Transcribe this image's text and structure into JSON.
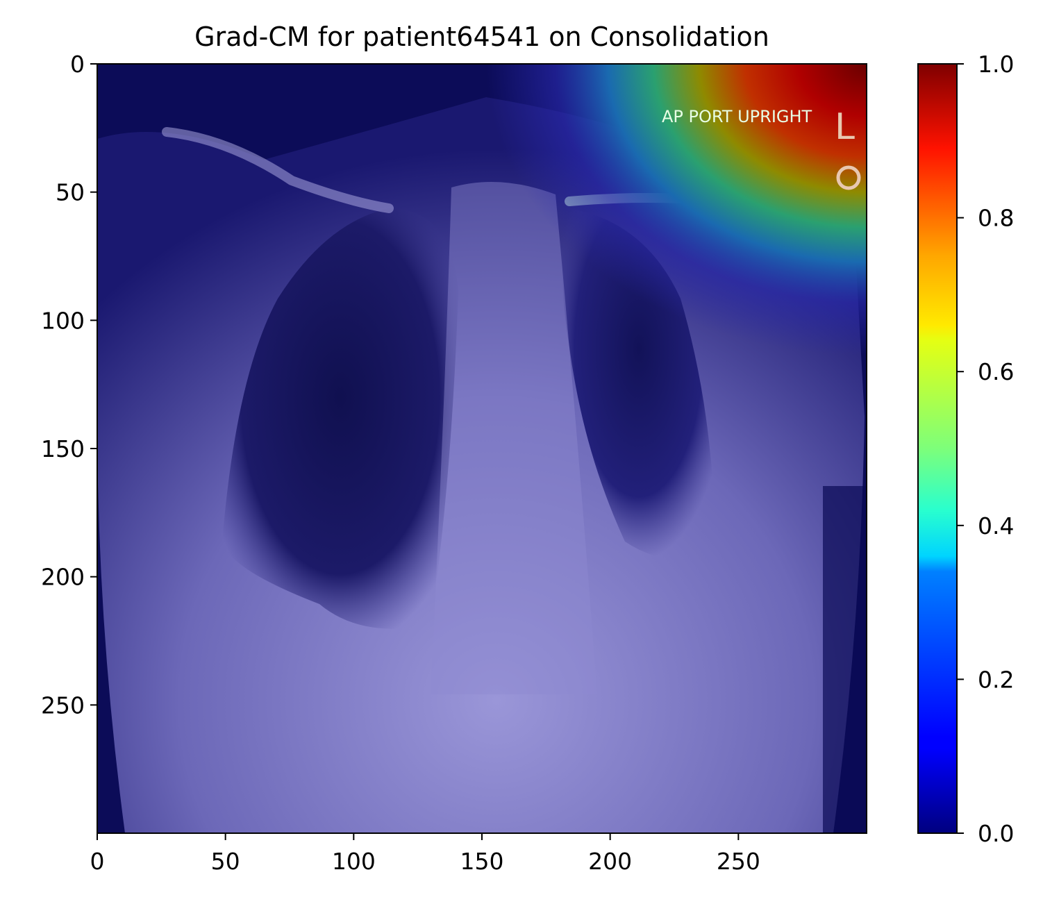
{
  "chart_data": {
    "type": "heatmap",
    "title": "Grad-CM for patient64541 on Consolidation",
    "image_width": 300,
    "image_height": 300,
    "xlim": [
      0,
      300
    ],
    "ylim": [
      300,
      0
    ],
    "x_ticks": [
      0,
      50,
      100,
      150,
      200,
      250
    ],
    "y_ticks": [
      0,
      50,
      100,
      150,
      200,
      250
    ],
    "colorbar": {
      "colormap": "jet",
      "range": [
        0.0,
        1.0
      ],
      "ticks": [
        0.0,
        0.2,
        0.4,
        0.6,
        0.8,
        1.0
      ],
      "tick_labels": [
        "0.0",
        "0.2",
        "0.4",
        "0.6",
        "0.8",
        "1.0"
      ]
    },
    "image_overlay_text": [
      "AP PORT UPRIGHT",
      "L"
    ],
    "activation_hotspot": {
      "region": "top-right",
      "peak_value": 1.0
    }
  }
}
